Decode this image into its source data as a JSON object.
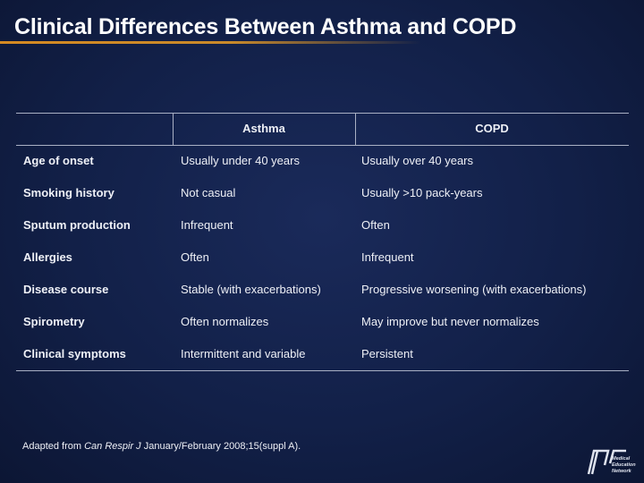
{
  "header": {
    "title": "Clinical Differences Between Asthma and COPD"
  },
  "table": {
    "columns": [
      "Asthma",
      "COPD"
    ],
    "rows": [
      [
        "Age of onset",
        "Usually under 40 years",
        "Usually over 40 years"
      ],
      [
        "Smoking history",
        "Not casual",
        "Usually >10 pack-years"
      ],
      [
        "Sputum production",
        "Infrequent",
        "Often"
      ],
      [
        "Allergies",
        "Often",
        "Infrequent"
      ],
      [
        "Disease course",
        "Stable (with exacerbations)",
        "Progressive worsening (with exacerbations)"
      ],
      [
        "Spirometry",
        "Often normalizes",
        "May improve but never normalizes"
      ],
      [
        "Clinical symptoms",
        "Intermittent and variable",
        "Persistent"
      ]
    ]
  },
  "footnote": {
    "prefix": "Adapted from ",
    "journal": "Can Respir J",
    "rest": " January/February 2008;15(suppl A)."
  },
  "logo": {
    "lines": [
      "Medical",
      "Education",
      "Network"
    ]
  }
}
